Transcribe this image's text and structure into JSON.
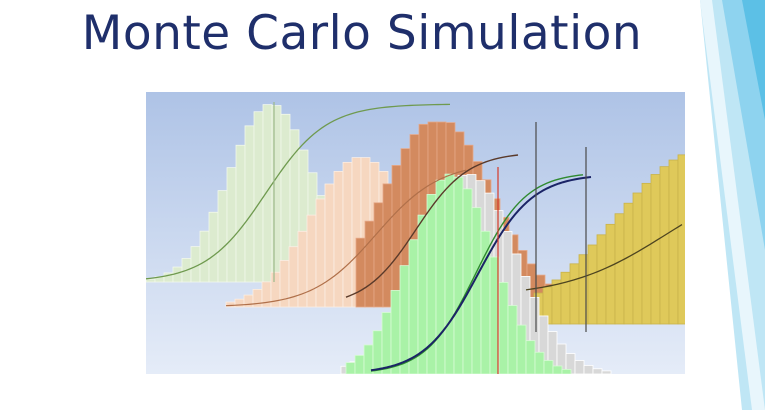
{
  "slide": {
    "title": "Monte Carlo Simulation"
  },
  "theme": {
    "title_color": "#1f2f6b",
    "accent": "#6fc3e6"
  },
  "illustration": {
    "description_icon": "overlapping-histograms-with-cdf-curves",
    "panel_colors": {
      "background_top": "#aec3e6",
      "background_bottom": "#e5ecf8",
      "green_pale": "#dcebcf",
      "peach": "#f6d7c0",
      "copper": "#d38a5f",
      "mustard": "#dfc95a",
      "grey": "#d8d8d8",
      "green_bright": "#a9f2a7"
    }
  }
}
